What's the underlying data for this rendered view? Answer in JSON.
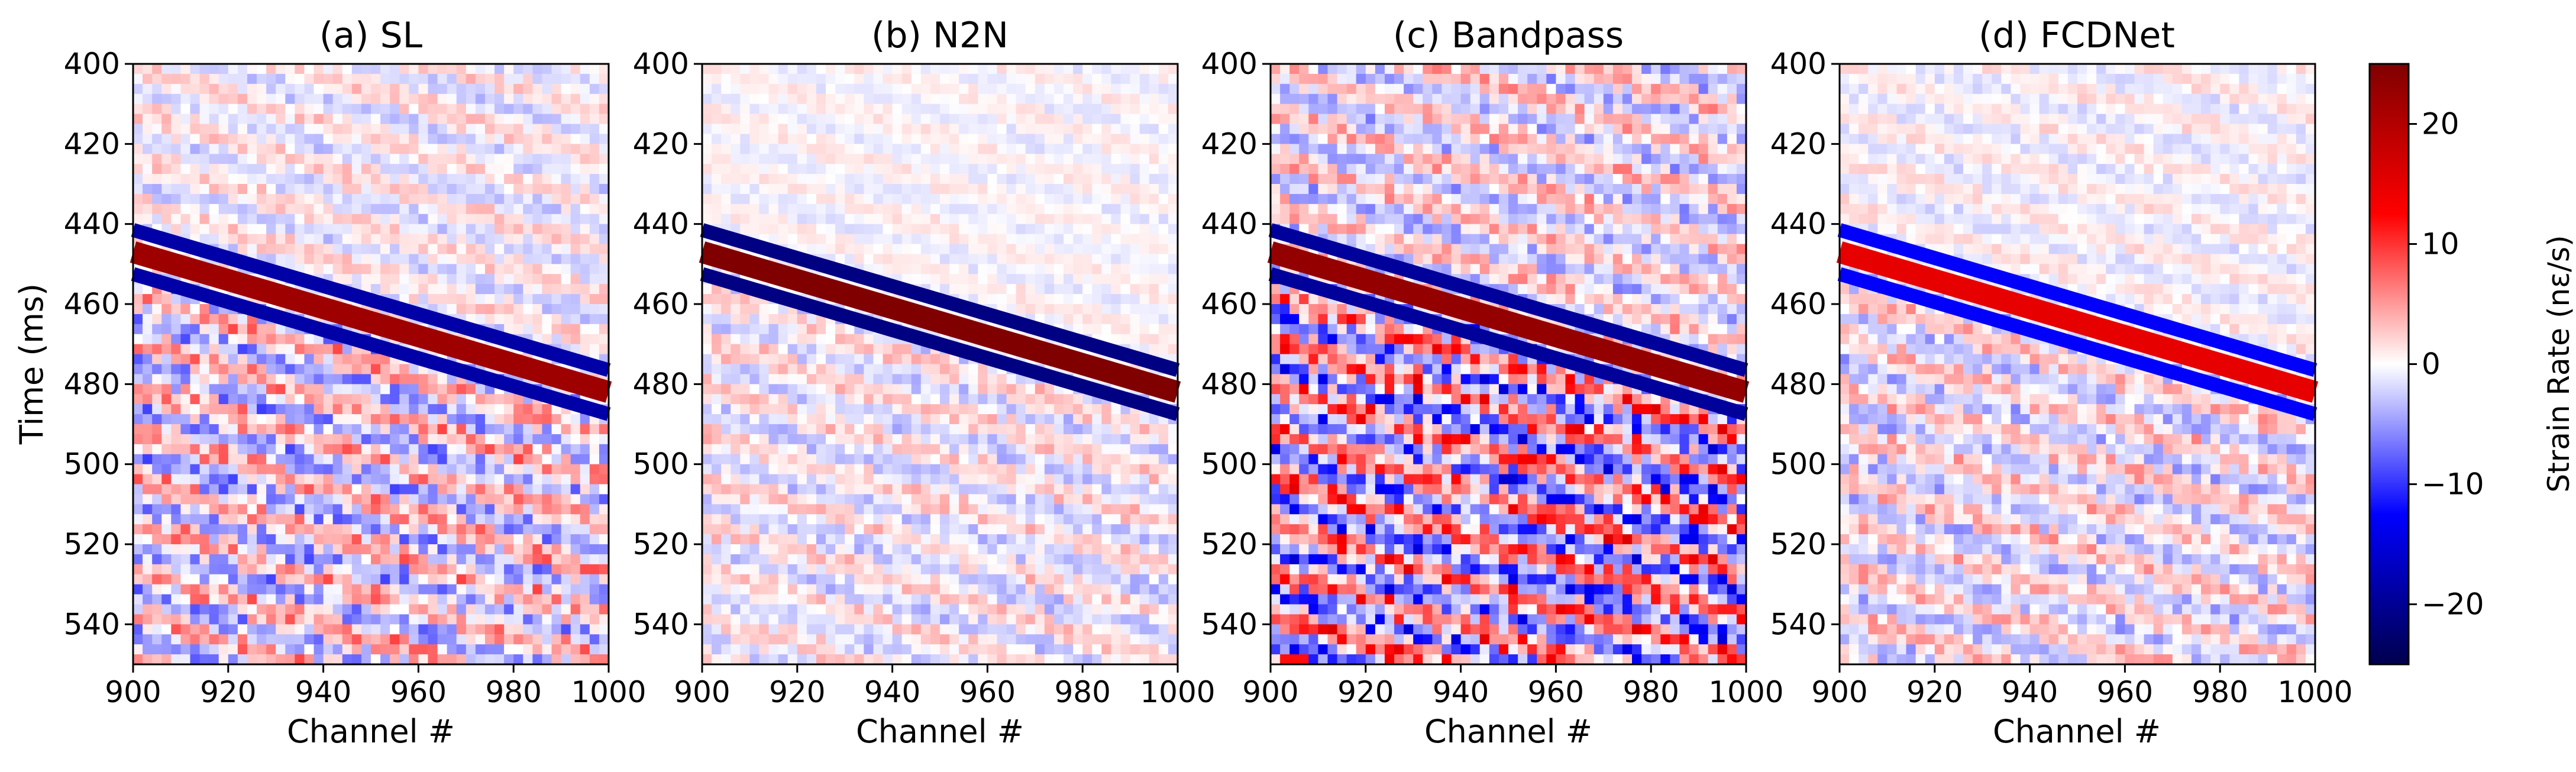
{
  "chart_data": {
    "type": "heatmap",
    "xlabel": "Channel #",
    "ylabel": "Time (ms)",
    "xlim": [
      900,
      1000
    ],
    "ylim": [
      400,
      550
    ],
    "y_inverted": true,
    "x_ticks": [
      900,
      920,
      940,
      960,
      980,
      1000
    ],
    "y_ticks": [
      400,
      420,
      440,
      460,
      480,
      500,
      520,
      540
    ],
    "colormap": "seismic",
    "colorbar": {
      "label": "Strain Rate (nε/s)",
      "range": [
        -25,
        25
      ],
      "ticks": [
        20,
        10,
        0,
        -10,
        -20
      ],
      "tick_labels": [
        "20",
        "10",
        "0",
        "−10",
        "−20"
      ]
    },
    "event": {
      "description": "linear moveout",
      "start": {
        "channel": 900,
        "time_ms": 447
      },
      "end": {
        "channel": 1000,
        "time_ms": 482
      }
    },
    "panels": [
      {
        "id": "a",
        "title": "(a) SL",
        "event_amplitude": 22,
        "noise_level": 6,
        "texture_seed": 11
      },
      {
        "id": "b",
        "title": "(b) N2N",
        "event_amplitude": 25,
        "noise_level": 3,
        "texture_seed": 29
      },
      {
        "id": "c",
        "title": "(c) Bandpass",
        "event_amplitude": 23,
        "noise_level": 10,
        "texture_seed": 47
      },
      {
        "id": "d",
        "title": "(d) FCDNet",
        "event_amplitude": 15,
        "noise_level": 4,
        "texture_seed": 83
      }
    ]
  }
}
